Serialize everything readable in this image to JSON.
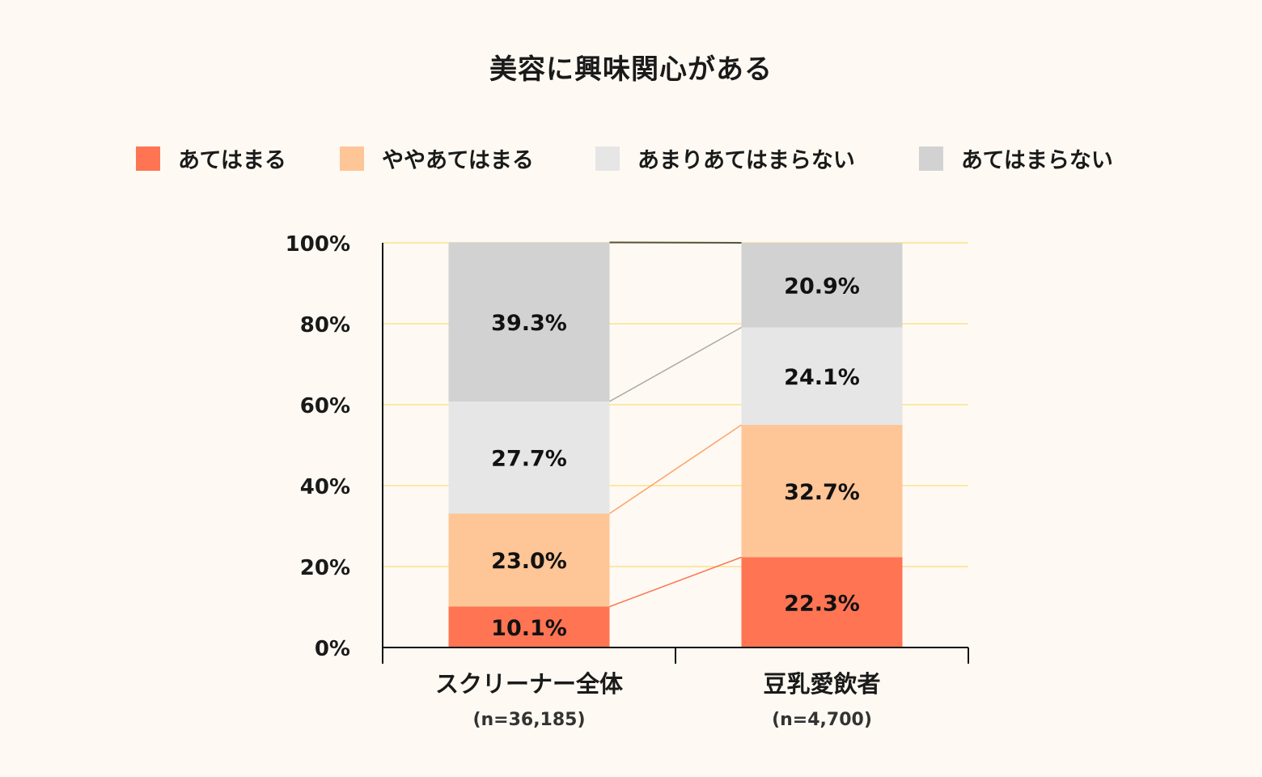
{
  "chart_data": {
    "type": "bar",
    "stacked": true,
    "title": "美容に興味関心がある",
    "categories": [
      "スクリーナー全体",
      "豆乳愛飲者"
    ],
    "category_subtitles": [
      "(n=36,185)",
      "(n=4,700)"
    ],
    "series": [
      {
        "name": "あてはまる",
        "color": "#ff7453",
        "values": [
          10.1,
          22.3
        ]
      },
      {
        "name": "ややあてはまる",
        "color": "#fec597",
        "values": [
          23.0,
          32.7
        ]
      },
      {
        "name": "あまりあてはまらない",
        "color": "#e6e6e6",
        "values": [
          27.7,
          24.1
        ]
      },
      {
        "name": "あてはまらない",
        "color": "#d2d2d2",
        "values": [
          39.3,
          20.9
        ]
      }
    ],
    "value_labels": [
      [
        "10.1%",
        "22.3%"
      ],
      [
        "23.0%",
        "32.7%"
      ],
      [
        "27.7%",
        "24.1%"
      ],
      [
        "39.3%",
        "20.9%"
      ]
    ],
    "connector_colors": [
      "#ff7453",
      "#fea36a",
      "#aaaaaa",
      "#5a5240"
    ],
    "ylim": [
      0,
      100
    ],
    "yticks": [
      "0%",
      "20%",
      "40%",
      "60%",
      "80%",
      "100%"
    ],
    "grid": true,
    "grid_color": "#fde7a6",
    "legend_position": "top"
  }
}
